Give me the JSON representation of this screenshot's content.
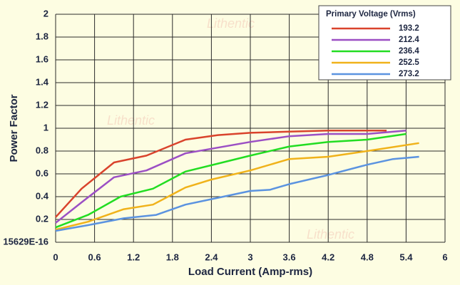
{
  "chart_data": {
    "type": "line",
    "watermark": "Lithentic",
    "xlabel": "Load Current (Amp-rms)",
    "ylabel": "Power Factor",
    "legend_title": "Primary Voltage (Vrms)",
    "legend": "upper right",
    "grid": true,
    "xlim": [
      0,
      6
    ],
    "ylim": [
      0,
      2
    ],
    "xticks": [
      0,
      0.6,
      1.2,
      1.8,
      2.4,
      3,
      3.6,
      4.2,
      4.8,
      5.4,
      6
    ],
    "yticks": [
      {
        "value": 0,
        "label": "15629E-16"
      },
      0.2,
      0.4,
      0.6,
      0.8,
      1,
      1.2,
      1.4,
      1.6,
      1.8,
      2
    ],
    "series": [
      {
        "name": "193.2",
        "color": "#d9432c",
        "x": [
          0,
          0.4,
          0.9,
          1.4,
          2.0,
          2.5,
          3.0,
          3.6,
          4.2,
          4.8,
          5.1
        ],
        "values": [
          0.22,
          0.47,
          0.7,
          0.76,
          0.9,
          0.94,
          0.96,
          0.97,
          0.98,
          0.98,
          0.98
        ]
      },
      {
        "name": "212.4",
        "color": "#9b4fc4",
        "x": [
          0,
          0.4,
          0.9,
          1.4,
          2.0,
          2.5,
          3.0,
          3.6,
          4.2,
          4.8,
          5.4
        ],
        "values": [
          0.17,
          0.35,
          0.57,
          0.63,
          0.78,
          0.83,
          0.88,
          0.93,
          0.95,
          0.95,
          0.98
        ]
      },
      {
        "name": "236.4",
        "color": "#22dd22",
        "x": [
          0,
          0.5,
          1.0,
          1.5,
          2.0,
          2.5,
          3.0,
          3.6,
          4.2,
          4.8,
          5.4
        ],
        "values": [
          0.13,
          0.24,
          0.4,
          0.47,
          0.62,
          0.69,
          0.76,
          0.84,
          0.88,
          0.9,
          0.95
        ]
      },
      {
        "name": "252.5",
        "color": "#f0b21a",
        "x": [
          0,
          0.5,
          1.05,
          1.5,
          2.0,
          2.4,
          3.0,
          3.6,
          4.2,
          4.8,
          5.6
        ],
        "values": [
          0.11,
          0.18,
          0.29,
          0.33,
          0.48,
          0.55,
          0.63,
          0.73,
          0.75,
          0.8,
          0.87
        ]
      },
      {
        "name": "273.2",
        "color": "#5b93e0",
        "x": [
          0,
          0.5,
          1.05,
          1.55,
          2.0,
          2.5,
          3.0,
          3.3,
          3.6,
          4.2,
          4.8,
          5.2,
          5.6
        ],
        "values": [
          0.1,
          0.15,
          0.21,
          0.24,
          0.33,
          0.39,
          0.45,
          0.46,
          0.51,
          0.59,
          0.68,
          0.73,
          0.75
        ]
      }
    ]
  }
}
